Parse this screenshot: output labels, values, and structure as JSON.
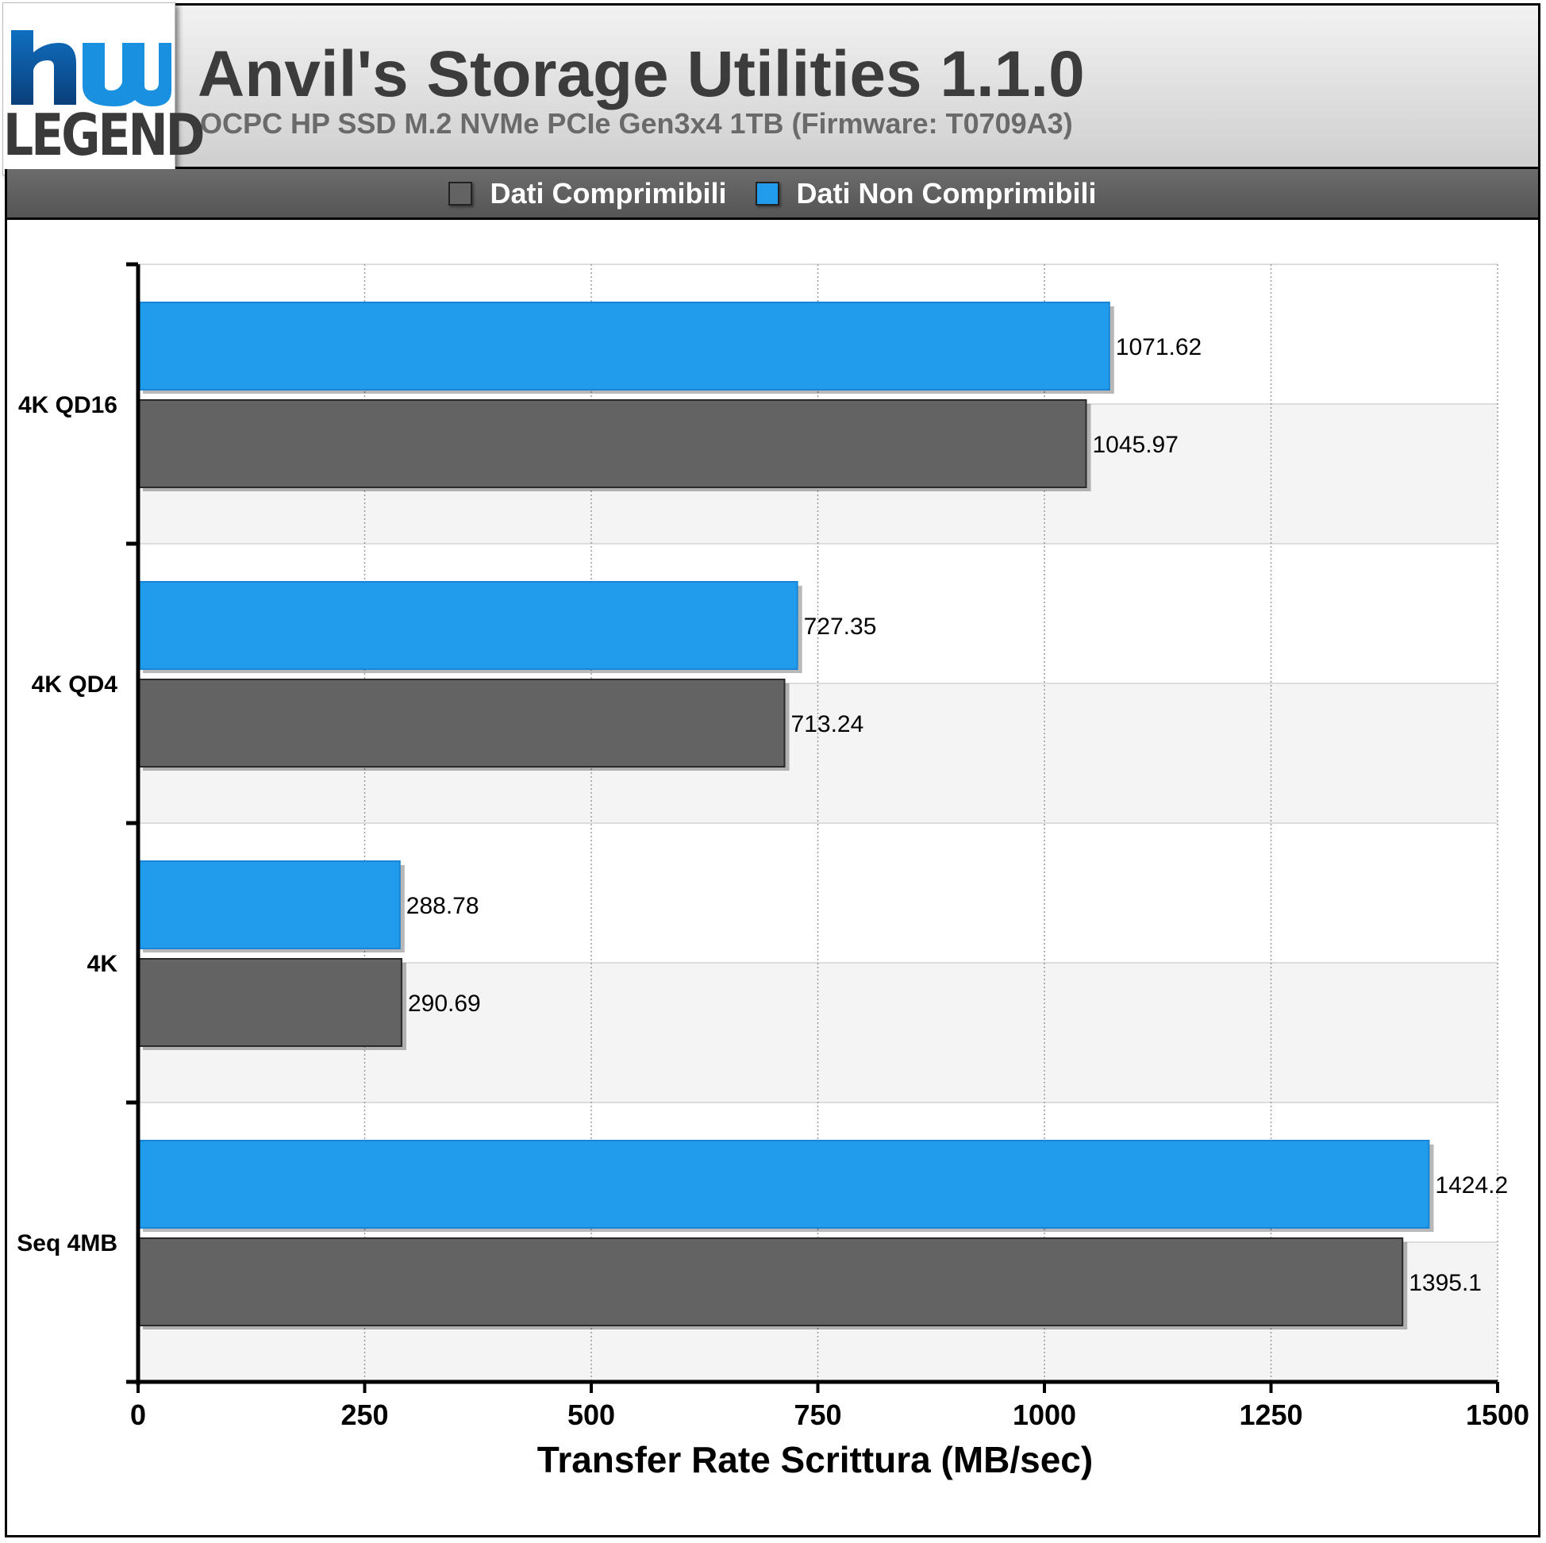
{
  "header": {
    "logo_text": "LEGEND",
    "title": "Anvil's Storage Utilities 1.1.0",
    "subtitle": "OCPC HP SSD M.2 NVMe PCIe Gen3x4 1TB (Firmware: T0709A3)"
  },
  "legend": [
    {
      "label": "Dati Comprimibili",
      "color": "#636363"
    },
    {
      "label": "Dati Non Comprimibili",
      "color": "#219cec"
    }
  ],
  "chart_data": {
    "type": "bar",
    "orientation": "horizontal",
    "categories": [
      "4K QD16",
      "4K QD4",
      "4K",
      "Seq 4MB"
    ],
    "series": [
      {
        "name": "Dati Non Comprimibili",
        "color": "#219cec",
        "values": [
          1071.62,
          727.35,
          288.78,
          1424.2
        ],
        "labels": [
          "1071.62",
          "727.35",
          "288.78",
          "1424.2"
        ]
      },
      {
        "name": "Dati Comprimibili",
        "color": "#636363",
        "values": [
          1045.97,
          713.24,
          290.69,
          1395.1
        ],
        "labels": [
          "1045.97",
          "713.24",
          "290.69",
          "1395.1"
        ]
      }
    ],
    "xlabel": "Transfer Rate Scrittura (MB/sec)",
    "xlim": [
      0,
      1500
    ],
    "xticks": [
      0,
      250,
      500,
      750,
      1000,
      1250,
      1500
    ],
    "grid": true,
    "legend_position": "top"
  }
}
